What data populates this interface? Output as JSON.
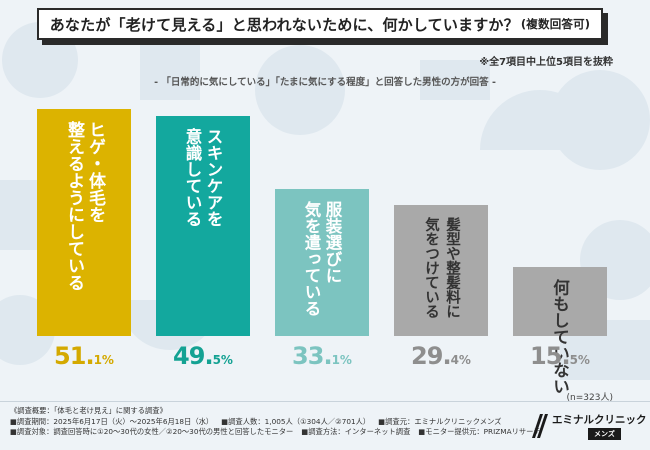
{
  "header": {
    "title": "あなたが「老けて見える」と思われないために、何かしていますか？",
    "title_suffix": "(複数回答可)"
  },
  "notes": {
    "top7": "※全7項目中上位5項目を抜粋",
    "subtitle": "- 「日常的に気にしている」「たまに気にする程度」と回答した男性の方が回答 -"
  },
  "chart_data": {
    "type": "bar",
    "title": "あなたが「老けて見える」と思われないために、何かしていますか？(複数回答可)",
    "categories": [
      "ヒゲ・体毛を整えるようにしている",
      "スキンケアを意識している",
      "服装選びに気を遣っている",
      "髪型や整髪料に気をつけている",
      "何もしていない"
    ],
    "values": [
      51.1,
      49.5,
      33.1,
      29.4,
      15.5
    ],
    "label_lines": [
      [
        "ヒゲ・体毛を",
        "整えるようにしている"
      ],
      [
        "スキンケアを",
        "意識している"
      ],
      [
        "服装選びに",
        "気を遣っている"
      ],
      [
        "髪型や整髪料に",
        "気をつけている"
      ],
      [
        "何もしていない"
      ]
    ],
    "value_labels": [
      {
        "main": "51.",
        "dec": "1%"
      },
      {
        "main": "49.",
        "dec": "5%"
      },
      {
        "main": "33.",
        "dec": "1%"
      },
      {
        "main": "29.",
        "dec": "4%"
      },
      {
        "main": "15.",
        "dec": "5%"
      }
    ],
    "colors": [
      "#dcb300",
      "#13a89e",
      "#7cc4c0",
      "#a9a9a9",
      "#a9a9a9"
    ],
    "pct_colors": [
      "#d4a900",
      "#14a293",
      "#7cc4c0",
      "#8e8e8e",
      "#8e8e8e"
    ],
    "ylim": [
      0,
      55
    ],
    "sample_size": "(n=323人)"
  },
  "footer": {
    "lines": [
      [
        "《調査概要：「体毛と老け見え」に関する調査》"
      ],
      [
        "■調査期間：2025年6月17日（火）～2025年6月18日（水）",
        "■調査人数：1,005人（①304人／②701人）",
        "■調査元：エミナルクリニックメンズ"
      ],
      [
        "■調査対象：調査回答時に①20～30代の女性／②20～30代の男性と回答したモニター",
        "■調査方法：インターネット調査",
        "■モニター提供元：PRIZMAリサーチ"
      ]
    ]
  },
  "brand": {
    "name": "エミナルクリニック",
    "sub": "メンズ"
  }
}
